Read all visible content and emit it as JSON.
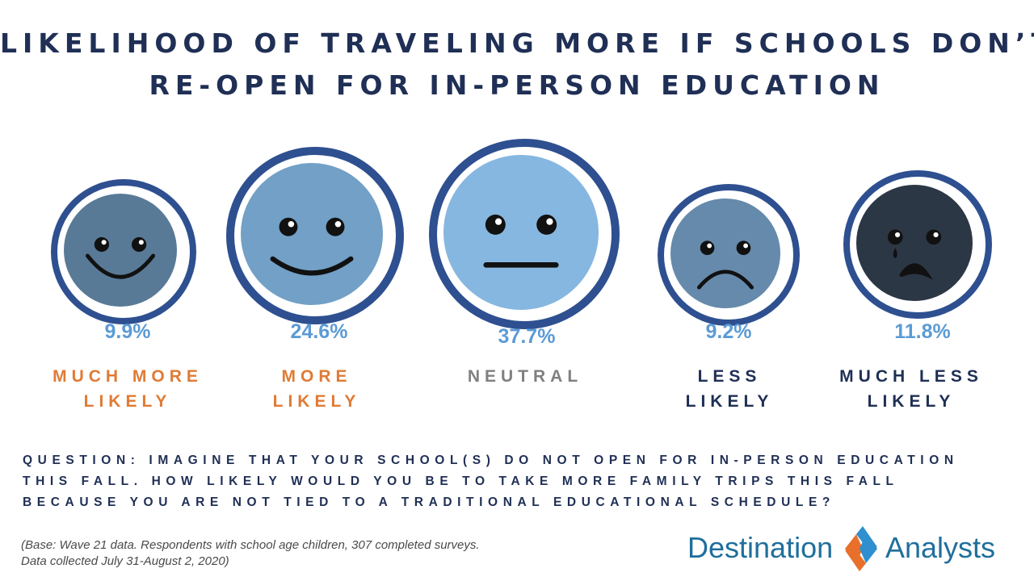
{
  "title": {
    "line1": "LIKELIHOOD OF TRAVELING MORE IF SCHOOLS DON’T",
    "line2": "RE-OPEN FOR IN-PERSON EDUCATION"
  },
  "chart_data": {
    "type": "table",
    "title": "LIKELIHOOD OF TRAVELING MORE IF SCHOOLS DON’T RE-OPEN FOR IN-PERSON EDUCATION",
    "categories": [
      "MUCH MORE LIKELY",
      "MORE LIKELY",
      "NEUTRAL",
      "LESS LIKELY",
      "MUCH LESS LIKELY"
    ],
    "values": [
      9.9,
      24.6,
      37.7,
      9.2,
      11.8
    ],
    "value_labels": [
      "9.9%",
      "24.6%",
      "37.7%",
      "9.2%",
      "11.8%"
    ],
    "label_lines": [
      [
        "MUCH MORE",
        "LIKELY"
      ],
      [
        "MORE",
        "LIKELY"
      ],
      [
        "NEUTRAL"
      ],
      [
        "LESS",
        "LIKELY"
      ],
      [
        "MUCH LESS",
        "LIKELY"
      ]
    ],
    "faces": [
      "big-smile",
      "smile",
      "neutral",
      "frown",
      "crying"
    ],
    "face_colors": [
      "#587a97",
      "#72a0c6",
      "#86b7e0",
      "#668aab",
      "#2c3745"
    ],
    "label_colors": [
      "#e07b35",
      "#e07b35",
      "#808080",
      "#1f2f55",
      "#1f2f55"
    ],
    "ring_color": "#2e5090",
    "value_color": "#5b9bd5"
  },
  "question": {
    "line1": "QUESTION: IMAGINE THAT YOUR SCHOOL(S) DO NOT OPEN FOR IN-PERSON EDUCATION",
    "line2": "THIS FALL.  HOW LIKELY WOULD YOU BE TO TAKE MORE FAMILY TRIPS THIS FALL",
    "line3": "BECAUSE YOU ARE NOT TIED TO A TRADITIONAL EDUCATIONAL SCHEDULE?"
  },
  "base_note": {
    "line1": "(Base: Wave 21 data. Respondents with school age children, 307 completed surveys.",
    "line2": "Data collected July 31-August 2, 2020)"
  },
  "logo": {
    "word1": "Destination",
    "word2": "Analysts",
    "colors": {
      "text": "#1f6f9c",
      "orange": "#e8702a",
      "blue": "#2f8fcf"
    }
  }
}
